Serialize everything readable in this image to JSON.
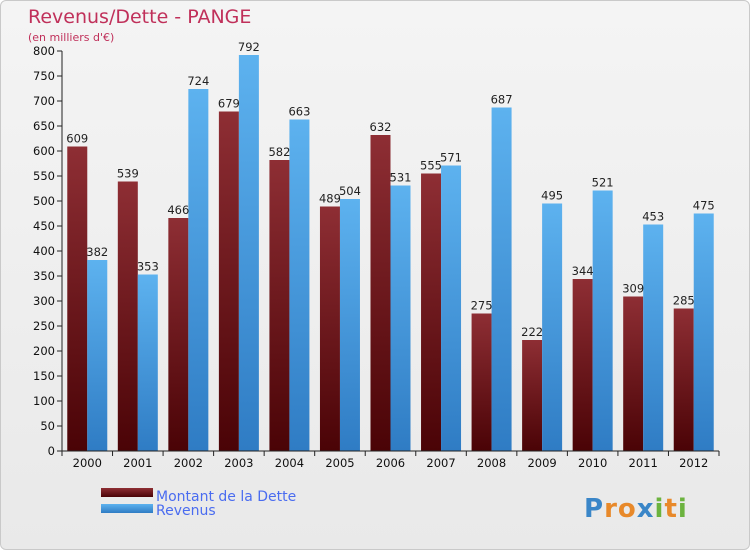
{
  "chart_data": {
    "type": "bar",
    "title": "Revenus/Dette - PANGE",
    "subtitle": "(en milliers d'€)",
    "categories": [
      "2000",
      "2001",
      "2002",
      "2003",
      "2004",
      "2005",
      "2006",
      "2007",
      "2008",
      "2009",
      "2010",
      "2011",
      "2012"
    ],
    "series": [
      {
        "name": "Montant de la Dette",
        "color": "#7a1a22",
        "values": [
          609,
          539,
          466,
          679,
          582,
          489,
          632,
          555,
          275,
          222,
          344,
          309,
          285
        ]
      },
      {
        "name": "Revenus",
        "color": "#4aa3e8",
        "values": [
          382,
          353,
          724,
          792,
          663,
          504,
          531,
          571,
          687,
          495,
          521,
          453,
          475
        ]
      }
    ],
    "ylim": [
      0,
      800
    ],
    "ytick_step": 50,
    "grid": false,
    "legend": "bottom-left"
  },
  "logo": {
    "text": "Proxiti",
    "letters": [
      "P",
      "r",
      "o",
      "x",
      "i",
      "t",
      "i"
    ],
    "colors": [
      "#3a86c8",
      "#e8892a",
      "#e8892a",
      "#3a86c8",
      "#6cb33f",
      "#e8892a",
      "#6cb33f"
    ]
  }
}
